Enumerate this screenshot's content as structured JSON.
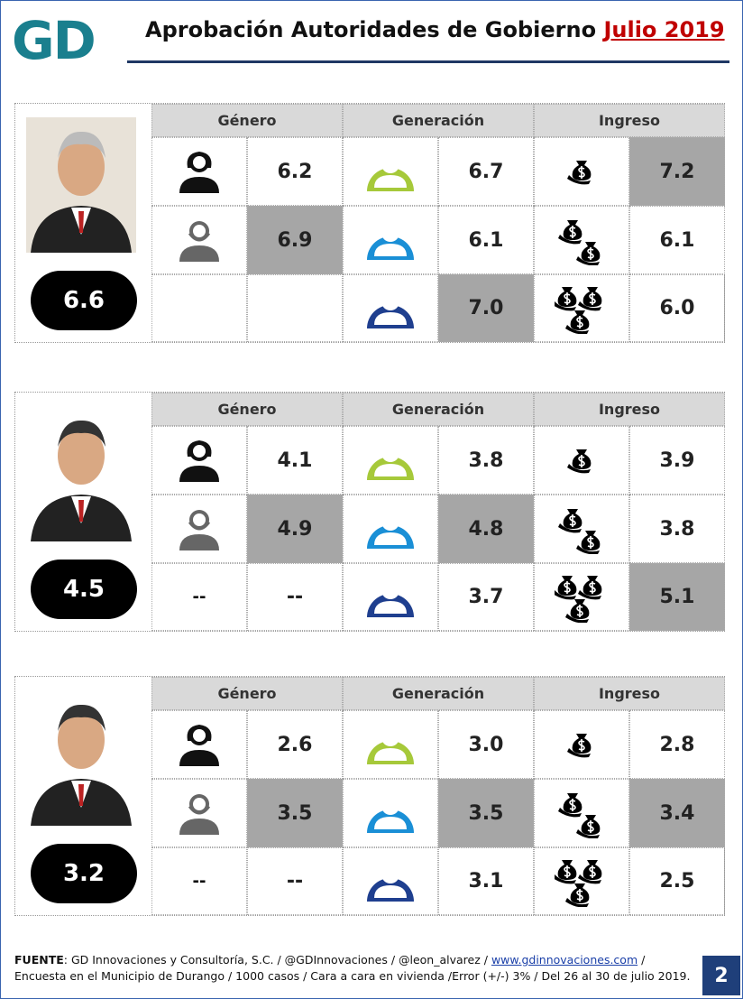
{
  "header": {
    "logo": "GD",
    "title": "Aprobación Autoridades de Gobierno",
    "title_highlight": "Julio 2019"
  },
  "columns": [
    "Género",
    "Generación",
    "Ingreso"
  ],
  "panels": [
    {
      "overall": "6.6",
      "rows": [
        [
          {
            "value": "6.2"
          },
          {
            "value": "6.7"
          },
          {
            "value": "7.2"
          }
        ],
        [
          {
            "value": "6.9"
          },
          {
            "value": "6.1"
          },
          {
            "value": "6.1"
          }
        ],
        [
          null,
          {
            "value": "7.0"
          },
          {
            "value": "6.0"
          }
        ]
      ],
      "highlight": [
        [
          0,
          2
        ],
        [
          1,
          0
        ],
        [
          2,
          1
        ]
      ]
    },
    {
      "overall": "4.5",
      "rows": [
        [
          {
            "value": "4.1"
          },
          {
            "value": "3.8"
          },
          {
            "value": "3.9"
          }
        ],
        [
          {
            "value": "4.9"
          },
          {
            "value": "4.8"
          },
          {
            "value": "3.8"
          }
        ],
        [
          {
            "icon": "--",
            "value": "--"
          },
          {
            "value": "3.7"
          },
          {
            "value": "5.1"
          }
        ]
      ],
      "highlight": [
        [
          1,
          0
        ],
        [
          1,
          1
        ],
        [
          2,
          2
        ]
      ]
    },
    {
      "overall": "3.2",
      "rows": [
        [
          {
            "value": "2.6"
          },
          {
            "value": "3.0"
          },
          {
            "value": "2.8"
          }
        ],
        [
          {
            "value": "3.5"
          },
          {
            "value": "3.5"
          },
          {
            "value": "3.4"
          }
        ],
        [
          {
            "icon": "--",
            "value": "--"
          },
          {
            "value": "3.1"
          },
          {
            "value": "2.5"
          }
        ]
      ],
      "highlight": [
        [
          1,
          0
        ],
        [
          1,
          1
        ],
        [
          1,
          2
        ]
      ]
    }
  ],
  "footer": {
    "source_label": "FUENTE",
    "source_text": ": GD Innovaciones y Consultoría, S.C. / @GDInnovaciones / @leon_alvarez / ",
    "link": "www.gdinnovaciones.com",
    "link_after": " /",
    "line2": "Encuesta en el Municipio de Durango / 1000 casos / Cara a cara en vivienda /Error (+/-) 3% / Del 26 al 30 de julio 2019.",
    "page_number": "2"
  }
}
